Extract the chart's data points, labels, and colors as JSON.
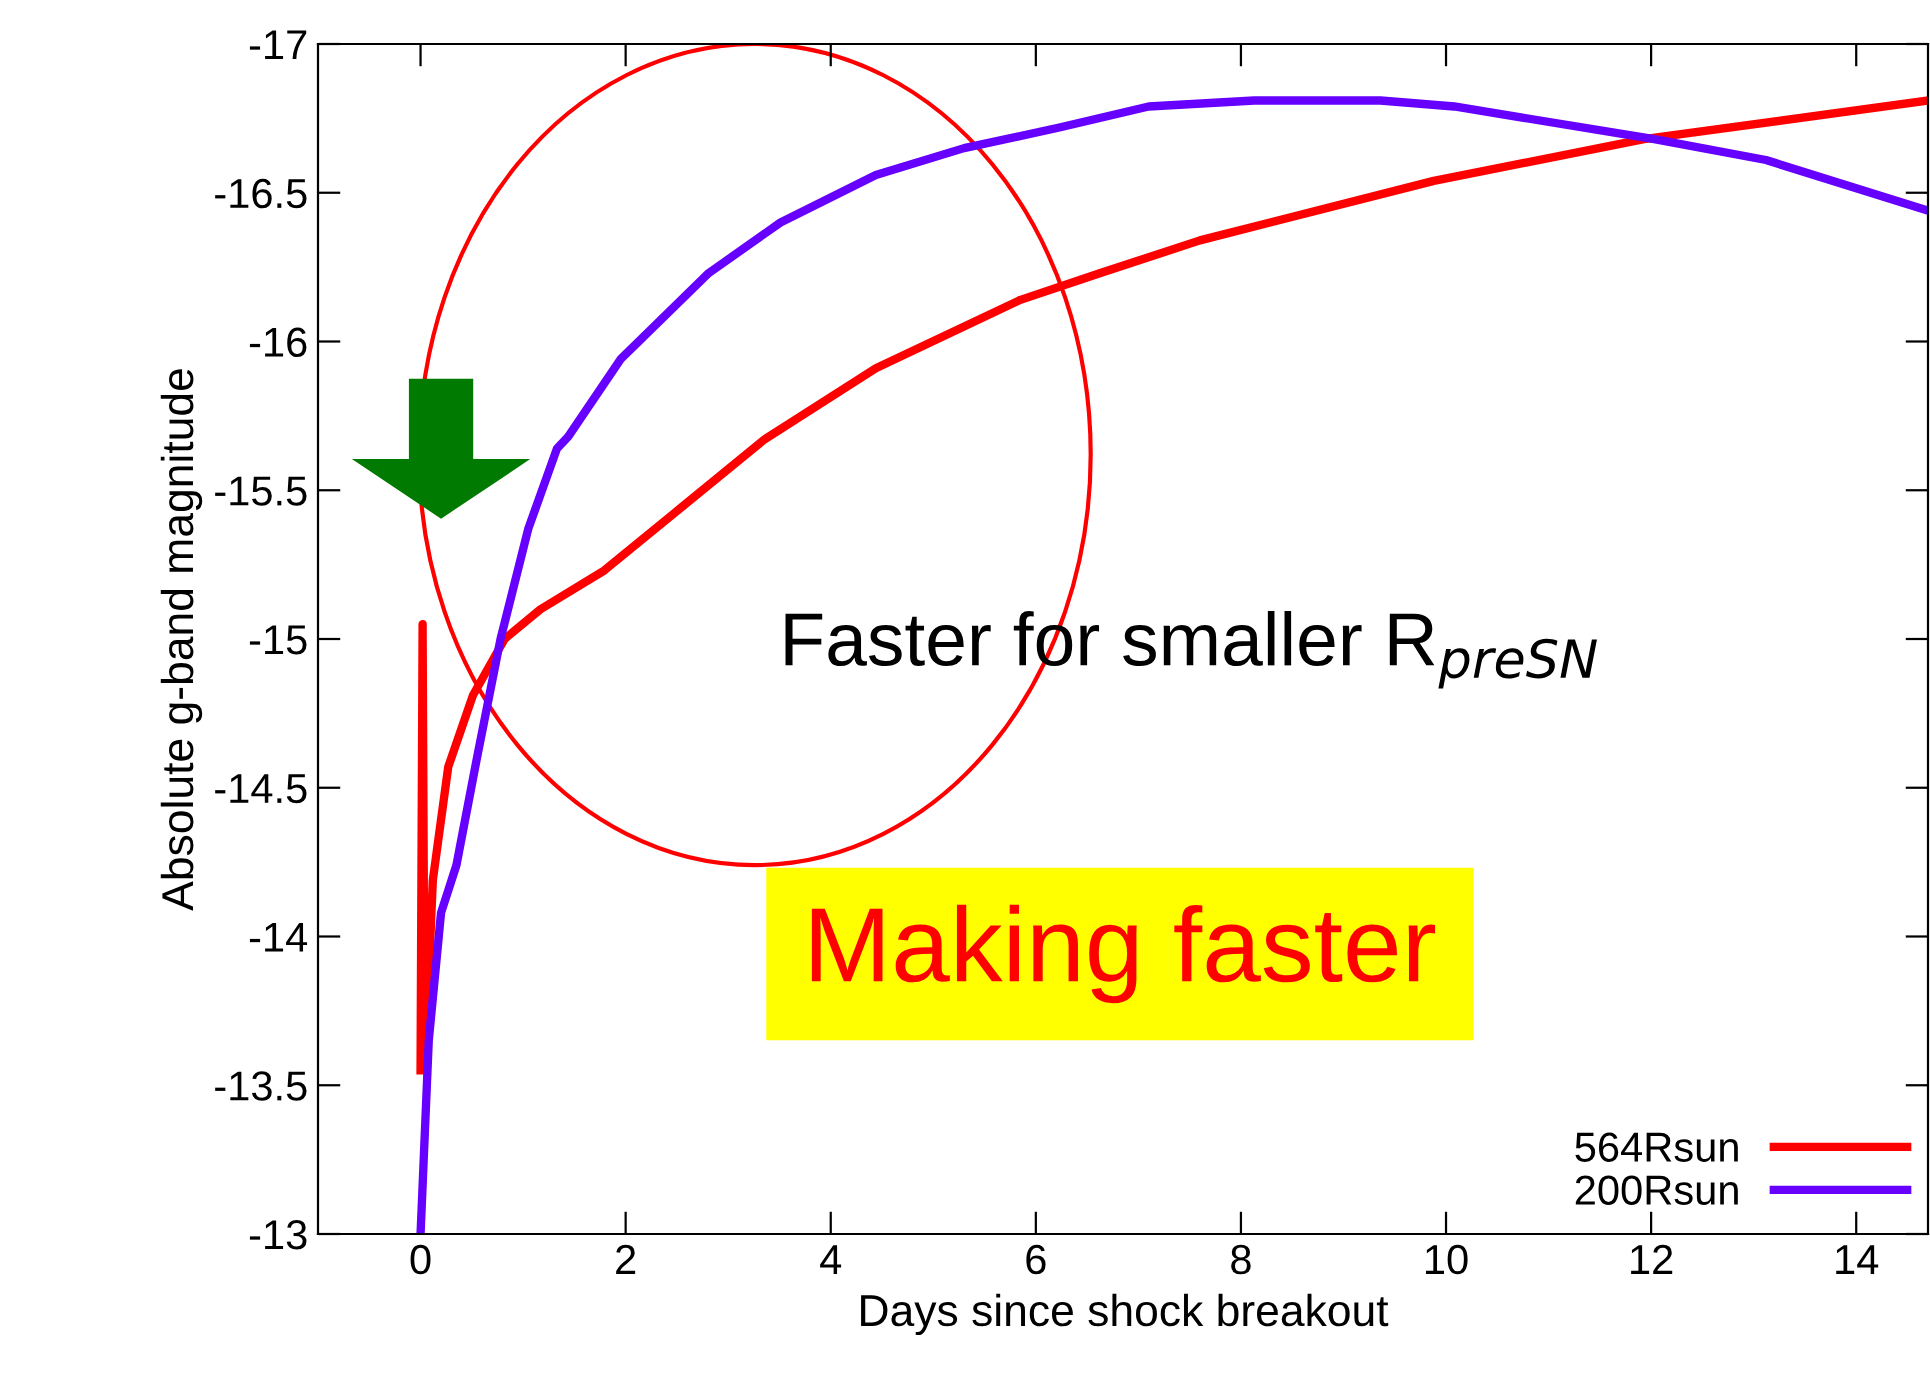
{
  "chart_data": {
    "type": "line",
    "xlabel": "Days since shock breakout",
    "ylabel": "Absolute g-band magnitude",
    "xlim": [
      -1,
      14.7
    ],
    "ylim": [
      -13,
      -17
    ],
    "xticks": [
      0,
      2,
      4,
      6,
      8,
      10,
      12,
      14
    ],
    "yticks": [
      -17,
      -16.5,
      -16,
      -15.5,
      -15,
      -14.5,
      -14,
      -13.5,
      -13
    ],
    "grid": false,
    "legend": "bottom right",
    "marker": "none",
    "line_style": "solid",
    "series": [
      {
        "name": "564Rsun",
        "color": "#ff0000",
        "x": [
          0,
          0.02,
          0.04,
          0.12,
          0.27,
          0.51,
          0.82,
          1.17,
          1.79,
          2.5,
          3.35,
          4.44,
          5.85,
          6.63,
          7.6,
          9.88,
          11.93,
          14.7
        ],
        "values": [
          -13.55,
          -15.05,
          -13.55,
          -14.19,
          -14.57,
          -14.81,
          -15.0,
          -15.1,
          -15.23,
          -15.43,
          -15.67,
          -15.91,
          -16.14,
          -16.23,
          -16.34,
          -16.54,
          -16.68,
          -16.81
        ]
      },
      {
        "name": "200Rsun",
        "color": "#6600ff",
        "x": [
          0,
          0.08,
          0.2,
          0.35,
          0.55,
          0.78,
          1.05,
          1.33,
          1.44,
          1.95,
          2.81,
          3.51,
          4.44,
          5.3,
          6.24,
          7.1,
          8.13,
          9.36,
          10.08,
          12.03,
          13.12,
          14.7
        ],
        "values": [
          -13.0,
          -13.65,
          -14.08,
          -14.24,
          -14.6,
          -15.0,
          -15.37,
          -15.64,
          -15.68,
          -15.94,
          -16.23,
          -16.4,
          -16.56,
          -16.65,
          -16.72,
          -16.79,
          -16.81,
          -16.81,
          -16.79,
          -16.68,
          -16.61,
          -16.44
        ]
      }
    ],
    "annotations": [
      "Faster for smaller R$_{preSN}$",
      "Making faster"
    ]
  }
}
